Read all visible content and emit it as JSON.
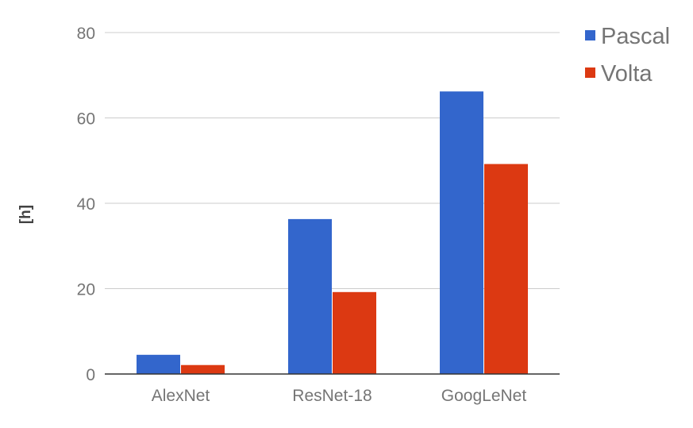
{
  "chart_data": {
    "type": "bar",
    "title": "",
    "xlabel": "",
    "ylabel": "[h]",
    "categories": [
      "AlexNet",
      "ResNet-18",
      "GoogLeNet"
    ],
    "series": [
      {
        "name": "Pascal",
        "values": [
          4.5,
          36.3,
          66.2
        ],
        "color": "#3366cc"
      },
      {
        "name": "Volta",
        "values": [
          2.1,
          19.2,
          49.2
        ],
        "color": "#dc3912"
      }
    ],
    "ylim": [
      0,
      80
    ],
    "yticks": [
      "0",
      "20",
      "40",
      "60",
      "80"
    ],
    "grid": true,
    "legend_position": "top-right"
  }
}
